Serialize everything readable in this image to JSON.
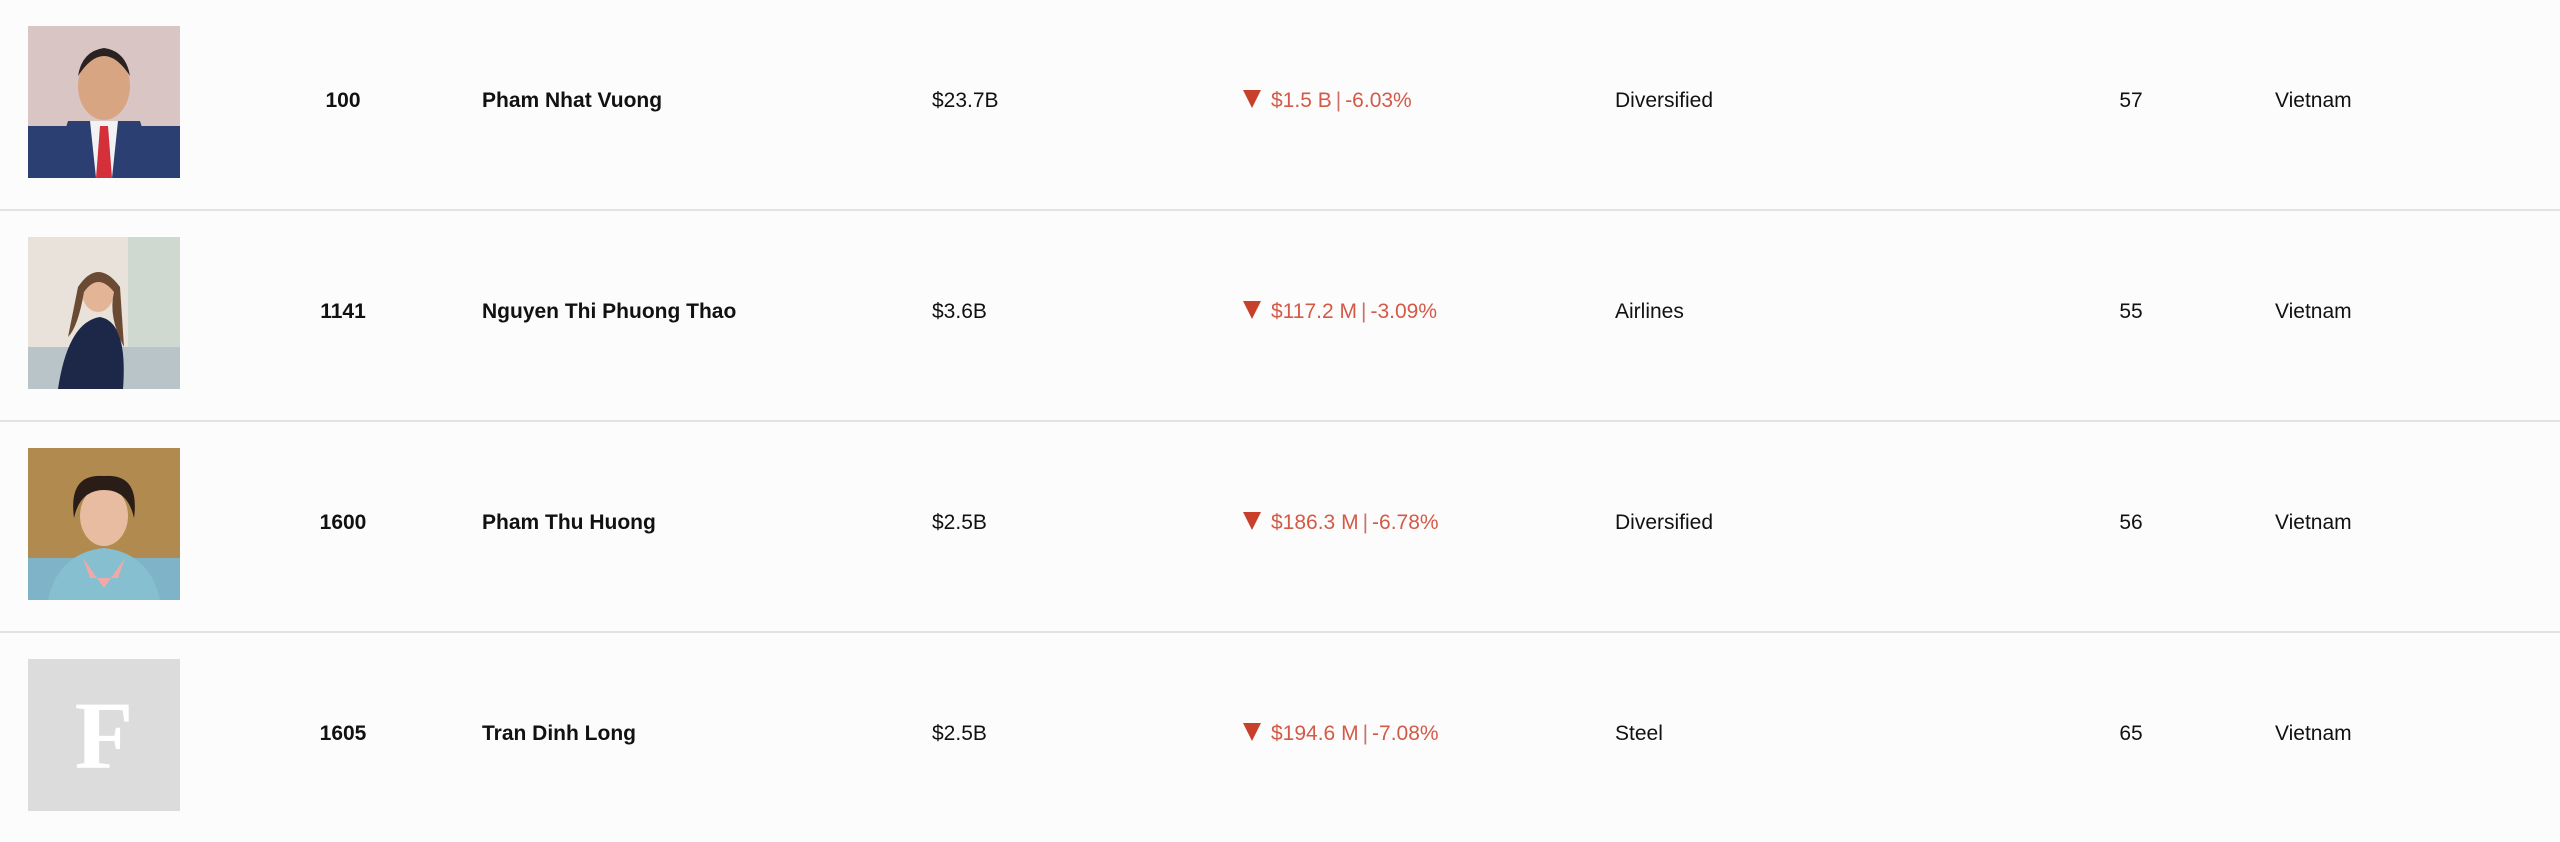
{
  "rows": [
    {
      "rank": "100",
      "name": "Pham Nhat Vuong",
      "net_worth": "$23.7B",
      "change_amount": "$1.5 B",
      "change_percent": "-6.03%",
      "industry": "Diversified",
      "age": "57",
      "country": "Vietnam",
      "photo": "portrait"
    },
    {
      "rank": "1141",
      "name": "Nguyen Thi Phuong Thao",
      "net_worth": "$3.6B",
      "change_amount": "$117.2 M",
      "change_percent": "-3.09%",
      "industry": "Airlines",
      "age": "55",
      "country": "Vietnam",
      "photo": "portrait"
    },
    {
      "rank": "1600",
      "name": "Pham Thu Huong",
      "net_worth": "$2.5B",
      "change_amount": "$186.3 M",
      "change_percent": "-6.78%",
      "industry": "Diversified",
      "age": "56",
      "country": "Vietnam",
      "photo": "portrait"
    },
    {
      "rank": "1605",
      "name": "Tran Dinh Long",
      "net_worth": "$2.5B",
      "change_amount": "$194.6 M",
      "change_percent": "-7.08%",
      "industry": "Steel",
      "age": "65",
      "country": "Vietnam",
      "photo": "placeholder",
      "placeholder_letter": "F"
    }
  ],
  "colors": {
    "down": "#c8402c",
    "down_text": "#d45a48",
    "divider": "#e2e2e2",
    "background": "#fcfcfc"
  },
  "icons": {
    "change": "triangle-down-icon"
  }
}
